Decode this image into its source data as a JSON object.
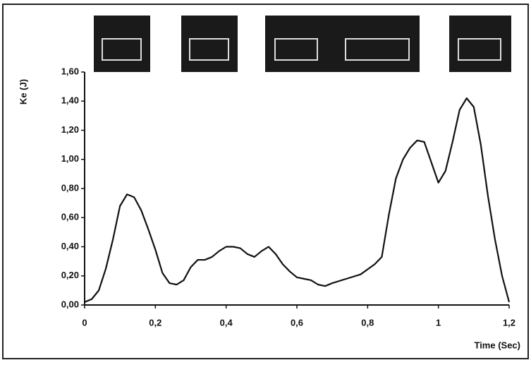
{
  "chart_data": {
    "type": "line",
    "y_label": "Ke (J)",
    "x_label": "Time (Sec)",
    "x": [
      0,
      0.02,
      0.04,
      0.06,
      0.08,
      0.1,
      0.12,
      0.14,
      0.16,
      0.18,
      0.2,
      0.22,
      0.24,
      0.26,
      0.28,
      0.3,
      0.32,
      0.34,
      0.36,
      0.38,
      0.4,
      0.42,
      0.44,
      0.46,
      0.48,
      0.5,
      0.52,
      0.54,
      0.56,
      0.58,
      0.6,
      0.62,
      0.64,
      0.66,
      0.68,
      0.7,
      0.74,
      0.78,
      0.82,
      0.84,
      0.86,
      0.88,
      0.9,
      0.92,
      0.94,
      0.96,
      0.98,
      1.0,
      1.02,
      1.04,
      1.06,
      1.08,
      1.1,
      1.12,
      1.14,
      1.16,
      1.18,
      1.2
    ],
    "values": [
      0.02,
      0.04,
      0.1,
      0.25,
      0.45,
      0.68,
      0.76,
      0.74,
      0.65,
      0.52,
      0.38,
      0.22,
      0.15,
      0.14,
      0.17,
      0.26,
      0.31,
      0.31,
      0.33,
      0.37,
      0.4,
      0.4,
      0.39,
      0.35,
      0.33,
      0.37,
      0.4,
      0.35,
      0.28,
      0.23,
      0.19,
      0.18,
      0.17,
      0.14,
      0.13,
      0.15,
      0.18,
      0.21,
      0.28,
      0.33,
      0.62,
      0.87,
      1.0,
      1.08,
      1.13,
      1.12,
      0.98,
      0.84,
      0.92,
      1.12,
      1.34,
      1.42,
      1.36,
      1.1,
      0.75,
      0.45,
      0.2,
      0.02
    ],
    "color": "#111111",
    "xlim": [
      0,
      1.2
    ],
    "ylim": [
      0,
      1.6
    ],
    "xticks": [
      0,
      {
        "value": 0.2,
        "label": "0,2"
      },
      {
        "value": 0.4,
        "label": "0,4"
      },
      {
        "value": 0.6,
        "label": "0,6"
      },
      {
        "value": 0.8,
        "label": "0,8"
      },
      1,
      {
        "value": 1.2,
        "label": "1,2"
      }
    ],
    "yticks": [
      {
        "value": 0,
        "label": "0,00"
      },
      {
        "value": 0.2,
        "label": "0,20"
      },
      {
        "value": 0.4,
        "label": "0,40"
      },
      {
        "value": 0.6,
        "label": "0,60"
      },
      {
        "value": 0.8,
        "label": "0,80"
      },
      {
        "value": 1.0,
        "label": "1,00"
      },
      {
        "value": 1.2,
        "label": "1,20"
      },
      {
        "value": 1.4,
        "label": "1,40"
      },
      {
        "value": 1.6,
        "label": "1,60"
      }
    ],
    "grid": false
  }
}
